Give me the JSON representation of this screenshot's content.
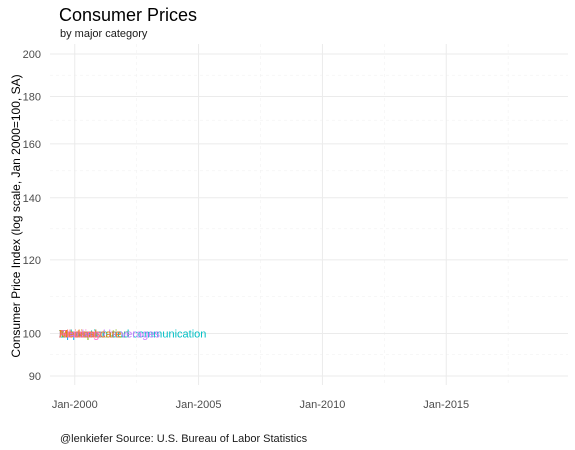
{
  "header": {
    "title": "Consumer Prices",
    "subtitle": "by major category"
  },
  "footer": {
    "caption": "@lenkiefer Source: U.S. Bureau of Labor Statistics"
  },
  "colors": {
    "grid_major": "#ebebeb",
    "grid_minor": "#f2f2f2",
    "text": "#4d4d4d",
    "series": [
      "#7cae00",
      "#00bfc4",
      "#00a9ff",
      "#c77cff",
      "#ff61cc",
      "#e68613",
      "#f8766d"
    ]
  },
  "chart_data": {
    "type": "line",
    "title": "Consumer Prices",
    "subtitle": "by major category",
    "xlabel": "",
    "ylabel": "Consumer Price Index (log scale, Jan 2000=100, SA)",
    "y_scale": "log",
    "ylim": [
      88,
      205
    ],
    "y_ticks": [
      90,
      100,
      120,
      140,
      160,
      180,
      200
    ],
    "x_ticks": [
      "Jan-2000",
      "Jan-2005",
      "Jan-2010",
      "Jan-2015"
    ],
    "xlim": [
      "1999-01",
      "2019-12"
    ],
    "grid": true,
    "legend": "none",
    "point_labels": [
      {
        "label": "Transportation",
        "x": "1999-01",
        "y": 100
      },
      {
        "label": "Education and communication",
        "x": "1999-01",
        "y": 100
      },
      {
        "label": "Apparel",
        "x": "1999-01",
        "y": 100
      },
      {
        "label": "Food and beverages",
        "x": "1999-01",
        "y": 100
      },
      {
        "label": "Housing",
        "x": "1999-01",
        "y": 100
      },
      {
        "label": "Medical care",
        "x": "1999-01",
        "y": 100
      },
      {
        "label": "All items",
        "x": "1999-01",
        "y": 100
      }
    ]
  }
}
